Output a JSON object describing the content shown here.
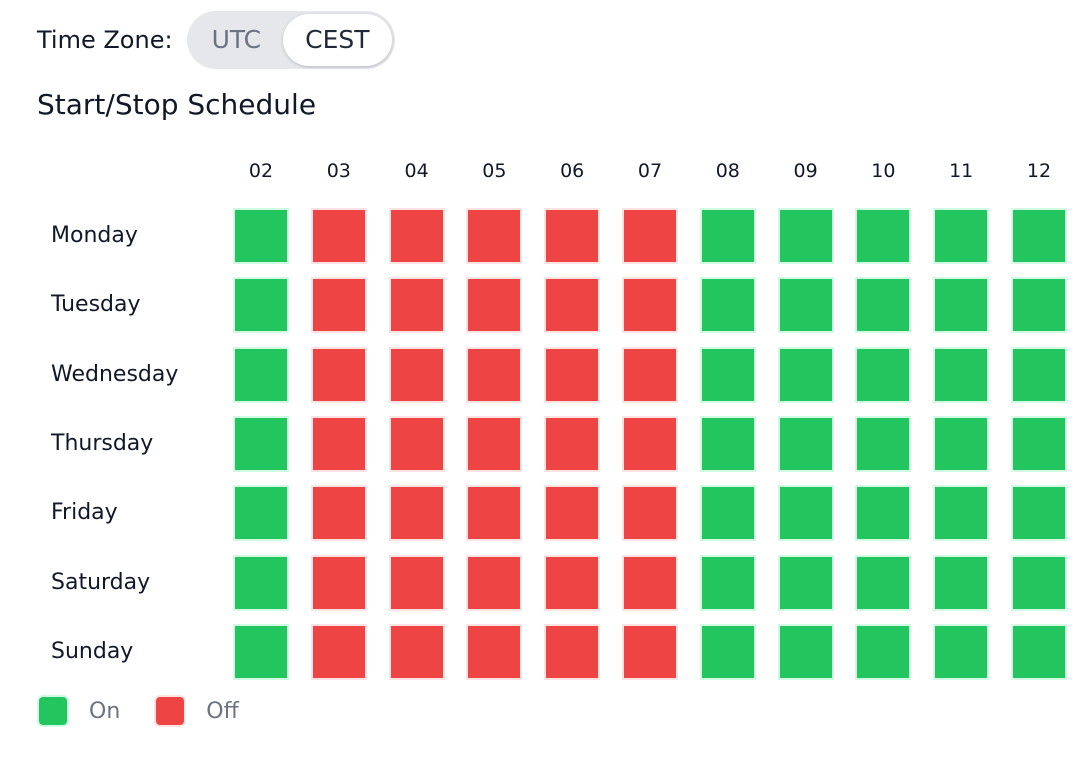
{
  "timezone": {
    "label": "Time Zone:",
    "options": [
      "UTC",
      "CEST"
    ],
    "selected": "CEST"
  },
  "title": "Start/Stop Schedule",
  "hours": [
    "02",
    "03",
    "04",
    "05",
    "06",
    "07",
    "08",
    "09",
    "10",
    "11",
    "12"
  ],
  "days": [
    "Monday",
    "Tuesday",
    "Wednesday",
    "Thursday",
    "Friday",
    "Saturday",
    "Sunday"
  ],
  "schedule": [
    [
      "on",
      "off",
      "off",
      "off",
      "off",
      "off",
      "on",
      "on",
      "on",
      "on",
      "on"
    ],
    [
      "on",
      "off",
      "off",
      "off",
      "off",
      "off",
      "on",
      "on",
      "on",
      "on",
      "on"
    ],
    [
      "on",
      "off",
      "off",
      "off",
      "off",
      "off",
      "on",
      "on",
      "on",
      "on",
      "on"
    ],
    [
      "on",
      "off",
      "off",
      "off",
      "off",
      "off",
      "on",
      "on",
      "on",
      "on",
      "on"
    ],
    [
      "on",
      "off",
      "off",
      "off",
      "off",
      "off",
      "on",
      "on",
      "on",
      "on",
      "on"
    ],
    [
      "on",
      "off",
      "off",
      "off",
      "off",
      "off",
      "on",
      "on",
      "on",
      "on",
      "on"
    ],
    [
      "on",
      "off",
      "off",
      "off",
      "off",
      "off",
      "on",
      "on",
      "on",
      "on",
      "on"
    ]
  ],
  "legend": {
    "on_label": "On",
    "off_label": "Off"
  },
  "colors": {
    "on": "#22c55e",
    "off": "#ef4444",
    "on_border": "#d1fae5",
    "off_border": "#fde2e2"
  }
}
